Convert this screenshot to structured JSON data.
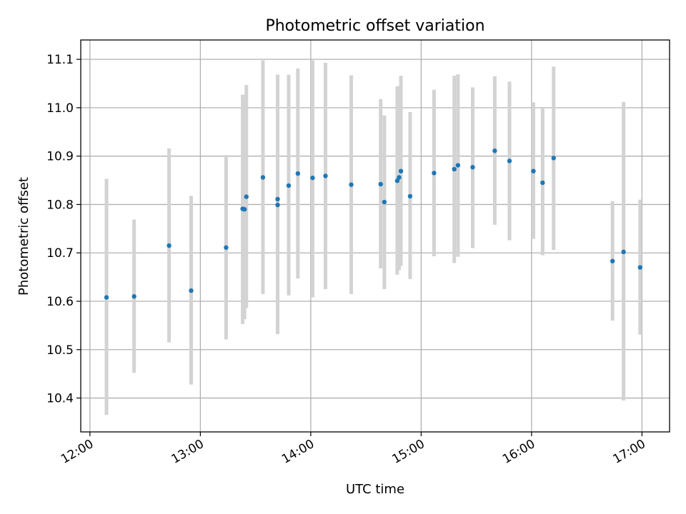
{
  "chart_data": {
    "type": "scatter",
    "title": "Photometric offset variation",
    "xlabel": "UTC time",
    "ylabel": "Photometric offset",
    "xlim": [
      "11:55",
      "17:15"
    ],
    "ylim": [
      10.33,
      11.14
    ],
    "xticks": [
      "12:00",
      "13:00",
      "14:00",
      "15:00",
      "16:00",
      "17:00"
    ],
    "yticks": [
      10.4,
      10.5,
      10.6,
      10.7,
      10.8,
      10.9,
      11.0,
      11.1
    ],
    "grid": true,
    "colors": {
      "point": "#1f77b4",
      "error_bar": "#d3d3d3",
      "grid": "#b0b0b0"
    },
    "points": [
      {
        "x": "12:09",
        "y": 10.608,
        "ylow": 10.365,
        "yhigh": 10.853
      },
      {
        "x": "12:24",
        "y": 10.61,
        "ylow": 10.452,
        "yhigh": 10.769
      },
      {
        "x": "12:43",
        "y": 10.715,
        "ylow": 10.515,
        "yhigh": 10.916
      },
      {
        "x": "12:55",
        "y": 10.622,
        "ylow": 10.428,
        "yhigh": 10.818
      },
      {
        "x": "13:14",
        "y": 10.711,
        "ylow": 10.521,
        "yhigh": 10.902
      },
      {
        "x": "13:23",
        "y": 10.791,
        "ylow": 10.553,
        "yhigh": 11.027
      },
      {
        "x": "13:24",
        "y": 10.79,
        "ylow": 10.563,
        "yhigh": 11.018
      },
      {
        "x": "13:25",
        "y": 10.816,
        "ylow": 10.586,
        "yhigh": 11.047
      },
      {
        "x": "13:34",
        "y": 10.856,
        "ylow": 10.615,
        "yhigh": 11.098
      },
      {
        "x": "13:42",
        "y": 10.799,
        "ylow": 10.532,
        "yhigh": 11.068
      },
      {
        "x": "13:42",
        "y": 10.811,
        "ylow": 10.553,
        "yhigh": 11.068
      },
      {
        "x": "13:48",
        "y": 10.839,
        "ylow": 10.612,
        "yhigh": 11.068
      },
      {
        "x": "13:53",
        "y": 10.864,
        "ylow": 10.647,
        "yhigh": 11.081
      },
      {
        "x": "14:01",
        "y": 10.855,
        "ylow": 10.608,
        "yhigh": 11.098
      },
      {
        "x": "14:08",
        "y": 10.859,
        "ylow": 10.625,
        "yhigh": 11.093
      },
      {
        "x": "14:22",
        "y": 10.841,
        "ylow": 10.615,
        "yhigh": 11.067
      },
      {
        "x": "14:38",
        "y": 10.842,
        "ylow": 10.668,
        "yhigh": 11.018
      },
      {
        "x": "14:40",
        "y": 10.805,
        "ylow": 10.625,
        "yhigh": 10.984
      },
      {
        "x": "14:47",
        "y": 10.849,
        "ylow": 10.655,
        "yhigh": 11.044
      },
      {
        "x": "14:48",
        "y": 10.856,
        "ylow": 10.665,
        "yhigh": 11.045
      },
      {
        "x": "14:49",
        "y": 10.869,
        "ylow": 10.673,
        "yhigh": 11.066
      },
      {
        "x": "14:54",
        "y": 10.817,
        "ylow": 10.646,
        "yhigh": 10.991
      },
      {
        "x": "15:07",
        "y": 10.865,
        "ylow": 10.693,
        "yhigh": 11.037
      },
      {
        "x": "15:18",
        "y": 10.873,
        "ylow": 10.679,
        "yhigh": 11.066
      },
      {
        "x": "15:20",
        "y": 10.881,
        "ylow": 10.692,
        "yhigh": 11.069
      },
      {
        "x": "15:28",
        "y": 10.877,
        "ylow": 10.71,
        "yhigh": 11.042
      },
      {
        "x": "15:40",
        "y": 10.911,
        "ylow": 10.758,
        "yhigh": 11.065
      },
      {
        "x": "15:48",
        "y": 10.89,
        "ylow": 10.726,
        "yhigh": 11.054
      },
      {
        "x": "16:01",
        "y": 10.869,
        "ylow": 10.729,
        "yhigh": 11.011
      },
      {
        "x": "16:06",
        "y": 10.845,
        "ylow": 10.695,
        "yhigh": 11.0
      },
      {
        "x": "16:12",
        "y": 10.896,
        "ylow": 10.706,
        "yhigh": 11.085
      },
      {
        "x": "16:44",
        "y": 10.683,
        "ylow": 10.56,
        "yhigh": 10.807
      },
      {
        "x": "16:50",
        "y": 10.702,
        "ylow": 10.395,
        "yhigh": 11.012
      },
      {
        "x": "16:59",
        "y": 10.67,
        "ylow": 10.531,
        "yhigh": 10.81
      }
    ]
  }
}
